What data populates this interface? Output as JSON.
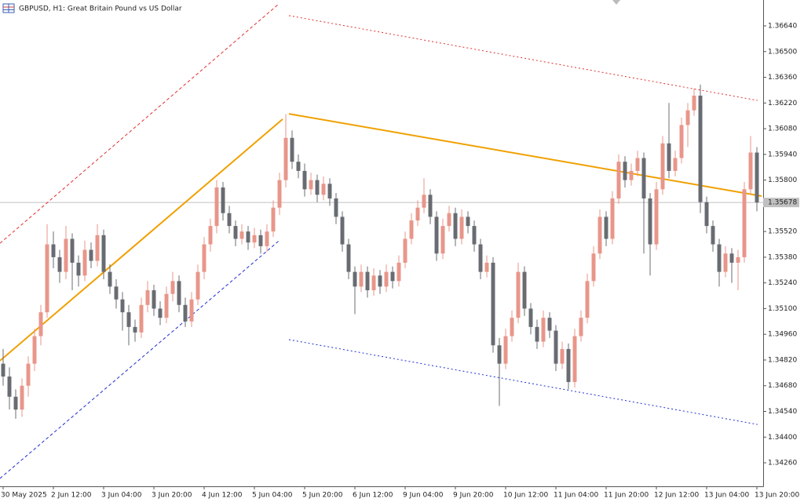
{
  "chart_data": {
    "type": "candlestick",
    "title": "GBPUSD, H1:  Great Britain Pound vs US Dollar",
    "up_color": "#e8968a",
    "down_color": "#686c72",
    "xlim": [
      -0.5,
      121.0
    ],
    "ylim": [
      1.34132,
      1.36781
    ],
    "xticks": [
      {
        "value": 0,
        "label": "30 May 2025"
      },
      {
        "value": 8,
        "label": "2 Jun 12:00"
      },
      {
        "value": 16,
        "label": "3 Jun 04:00"
      },
      {
        "value": 24,
        "label": "3 Jun 20:00"
      },
      {
        "value": 32,
        "label": "4 Jun 12:00"
      },
      {
        "value": 40,
        "label": "5 Jun 04:00"
      },
      {
        "value": 48,
        "label": "5 Jun 20:00"
      },
      {
        "value": 56,
        "label": "6 Jun 12:00"
      },
      {
        "value": 64,
        "label": "9 Jun 04:00"
      },
      {
        "value": 72,
        "label": "9 Jun 20:00"
      },
      {
        "value": 80,
        "label": "10 Jun 12:00"
      },
      {
        "value": 88,
        "label": "11 Jun 04:00"
      },
      {
        "value": 96,
        "label": "11 Jun 20:00"
      },
      {
        "value": 104,
        "label": "12 Jun 12:00"
      },
      {
        "value": 112,
        "label": "13 Jun 04:00"
      },
      {
        "value": 120,
        "label": "13 Jun 20:00"
      }
    ],
    "yticks": [
      {
        "value": 1.3664,
        "label": "1.36640"
      },
      {
        "value": 1.365,
        "label": "1.36500"
      },
      {
        "value": 1.3636,
        "label": "1.36360"
      },
      {
        "value": 1.3622,
        "label": "1.36220"
      },
      {
        "value": 1.3608,
        "label": "1.36080"
      },
      {
        "value": 1.3594,
        "label": "1.35940"
      },
      {
        "value": 1.358,
        "label": "1.35800"
      },
      {
        "value": 1.3552,
        "label": "1.35520"
      },
      {
        "value": 1.3538,
        "label": "1.35380"
      },
      {
        "value": 1.3524,
        "label": "1.35240"
      },
      {
        "value": 1.351,
        "label": "1.35100"
      },
      {
        "value": 1.3496,
        "label": "1.34960"
      },
      {
        "value": 1.3482,
        "label": "1.34820"
      },
      {
        "value": 1.3468,
        "label": "1.34680"
      },
      {
        "value": 1.3454,
        "label": "1.34540"
      },
      {
        "value": 1.344,
        "label": "1.34400"
      },
      {
        "value": 1.3426,
        "label": "1.34260"
      }
    ],
    "last_price": {
      "value": 1.35678,
      "label": "1.35678"
    },
    "ohlc": [
      [
        1.348,
        1.3488,
        1.3468,
        1.3473
      ],
      [
        1.3473,
        1.3478,
        1.3455,
        1.3462
      ],
      [
        1.3462,
        1.3466,
        1.345,
        1.3455
      ],
      [
        1.3455,
        1.3472,
        1.3451,
        1.3468
      ],
      [
        1.3468,
        1.3484,
        1.3462,
        1.348
      ],
      [
        1.348,
        1.3499,
        1.3476,
        1.3495
      ],
      [
        1.3495,
        1.3512,
        1.349,
        1.3508
      ],
      [
        1.3508,
        1.3556,
        1.3505,
        1.3545
      ],
      [
        1.3545,
        1.3552,
        1.3532,
        1.3538
      ],
      [
        1.3538,
        1.3542,
        1.3524,
        1.353
      ],
      [
        1.353,
        1.3555,
        1.3526,
        1.3548
      ],
      [
        1.3548,
        1.3551,
        1.352,
        1.3535
      ],
      [
        1.3535,
        1.3539,
        1.3522,
        1.3528
      ],
      [
        1.3528,
        1.3547,
        1.3525,
        1.3542
      ],
      [
        1.3542,
        1.3546,
        1.3532,
        1.3536
      ],
      [
        1.3536,
        1.3556,
        1.3533,
        1.355
      ],
      [
        1.355,
        1.3553,
        1.3526,
        1.353
      ],
      [
        1.353,
        1.3534,
        1.3518,
        1.3522
      ],
      [
        1.3522,
        1.3526,
        1.351,
        1.3515
      ],
      [
        1.3515,
        1.3519,
        1.3498,
        1.3508
      ],
      [
        1.3508,
        1.3512,
        1.349,
        1.35
      ],
      [
        1.35,
        1.3504,
        1.3492,
        1.3497
      ],
      [
        1.3497,
        1.3516,
        1.3494,
        1.3512
      ],
      [
        1.3512,
        1.3525,
        1.3508,
        1.352
      ],
      [
        1.352,
        1.3523,
        1.3506,
        1.351
      ],
      [
        1.351,
        1.3514,
        1.3501,
        1.3505
      ],
      [
        1.3505,
        1.3522,
        1.3502,
        1.3518
      ],
      [
        1.3518,
        1.353,
        1.3514,
        1.3525
      ],
      [
        1.3525,
        1.3528,
        1.3508,
        1.3512
      ],
      [
        1.3512,
        1.3516,
        1.35,
        1.3503
      ],
      [
        1.3503,
        1.3519,
        1.35,
        1.3515
      ],
      [
        1.3515,
        1.3534,
        1.3512,
        1.353
      ],
      [
        1.353,
        1.3549,
        1.3526,
        1.3545
      ],
      [
        1.3545,
        1.3559,
        1.3541,
        1.3555
      ],
      [
        1.3555,
        1.358,
        1.3551,
        1.3576
      ],
      [
        1.3576,
        1.3579,
        1.3558,
        1.3562
      ],
      [
        1.3562,
        1.3566,
        1.3551,
        1.3555
      ],
      [
        1.3555,
        1.3558,
        1.3544,
        1.3548
      ],
      [
        1.3548,
        1.3556,
        1.3545,
        1.3552
      ],
      [
        1.3552,
        1.3555,
        1.3542,
        1.3546
      ],
      [
        1.3546,
        1.3554,
        1.3543,
        1.355
      ],
      [
        1.355,
        1.3553,
        1.354,
        1.3544
      ],
      [
        1.3544,
        1.3556,
        1.3541,
        1.3552
      ],
      [
        1.3552,
        1.3569,
        1.3549,
        1.3565
      ],
      [
        1.3565,
        1.3584,
        1.3561,
        1.358
      ],
      [
        1.358,
        1.3616,
        1.3576,
        1.3603
      ],
      [
        1.3603,
        1.3607,
        1.3586,
        1.359
      ],
      [
        1.359,
        1.3594,
        1.3581,
        1.3585
      ],
      [
        1.3585,
        1.3589,
        1.3571,
        1.3575
      ],
      [
        1.3575,
        1.3584,
        1.3572,
        1.358
      ],
      [
        1.358,
        1.3583,
        1.3568,
        1.3572
      ],
      [
        1.3572,
        1.3582,
        1.3569,
        1.3578
      ],
      [
        1.3578,
        1.3581,
        1.3566,
        1.357
      ],
      [
        1.357,
        1.3573,
        1.3556,
        1.356
      ],
      [
        1.356,
        1.3563,
        1.3541,
        1.3545
      ],
      [
        1.3545,
        1.3548,
        1.3526,
        1.353
      ],
      [
        1.353,
        1.3533,
        1.3507,
        1.3522
      ],
      [
        1.3522,
        1.3534,
        1.3519,
        1.353
      ],
      [
        1.353,
        1.3533,
        1.3516,
        1.352
      ],
      [
        1.352,
        1.3532,
        1.3517,
        1.3528
      ],
      [
        1.3528,
        1.3531,
        1.3518,
        1.3522
      ],
      [
        1.3522,
        1.3534,
        1.3519,
        1.353
      ],
      [
        1.353,
        1.3533,
        1.3521,
        1.3525
      ],
      [
        1.3525,
        1.3539,
        1.3522,
        1.3535
      ],
      [
        1.3535,
        1.3552,
        1.3532,
        1.3548
      ],
      [
        1.3548,
        1.3562,
        1.3545,
        1.3558
      ],
      [
        1.3558,
        1.3569,
        1.3555,
        1.3565
      ],
      [
        1.3565,
        1.3581,
        1.3562,
        1.3572
      ],
      [
        1.3572,
        1.3575,
        1.3556,
        1.356
      ],
      [
        1.356,
        1.3563,
        1.3536,
        1.354
      ],
      [
        1.354,
        1.3559,
        1.3537,
        1.3555
      ],
      [
        1.3555,
        1.3566,
        1.3552,
        1.3562
      ],
      [
        1.3562,
        1.3565,
        1.3544,
        1.3548
      ],
      [
        1.3548,
        1.3564,
        1.3545,
        1.356
      ],
      [
        1.356,
        1.3563,
        1.3551,
        1.3555
      ],
      [
        1.3555,
        1.3558,
        1.3541,
        1.3545
      ],
      [
        1.3545,
        1.3548,
        1.3526,
        1.353
      ],
      [
        1.353,
        1.3539,
        1.3527,
        1.3535
      ],
      [
        1.3535,
        1.3538,
        1.3486,
        1.349
      ],
      [
        1.349,
        1.3494,
        1.3457,
        1.348
      ],
      [
        1.348,
        1.3499,
        1.3477,
        1.3495
      ],
      [
        1.3495,
        1.3509,
        1.3492,
        1.3505
      ],
      [
        1.3505,
        1.3535,
        1.3502,
        1.353
      ],
      [
        1.353,
        1.3533,
        1.3506,
        1.351
      ],
      [
        1.351,
        1.3513,
        1.3496,
        1.35
      ],
      [
        1.35,
        1.3504,
        1.3488,
        1.3492
      ],
      [
        1.3492,
        1.3509,
        1.3489,
        1.3505
      ],
      [
        1.3505,
        1.3508,
        1.3494,
        1.3498
      ],
      [
        1.3498,
        1.3501,
        1.3476,
        1.348
      ],
      [
        1.348,
        1.3492,
        1.3477,
        1.3488
      ],
      [
        1.3488,
        1.3491,
        1.3466,
        1.347
      ],
      [
        1.347,
        1.3499,
        1.3467,
        1.3495
      ],
      [
        1.3495,
        1.3509,
        1.3492,
        1.3505
      ],
      [
        1.3505,
        1.3529,
        1.3502,
        1.3525
      ],
      [
        1.3525,
        1.3544,
        1.3522,
        1.354
      ],
      [
        1.354,
        1.3564,
        1.3537,
        1.356
      ],
      [
        1.356,
        1.3563,
        1.3544,
        1.3548
      ],
      [
        1.3548,
        1.3574,
        1.3545,
        1.357
      ],
      [
        1.357,
        1.3594,
        1.3567,
        1.359
      ],
      [
        1.359,
        1.3593,
        1.3576,
        1.358
      ],
      [
        1.358,
        1.3589,
        1.3577,
        1.3585
      ],
      [
        1.3585,
        1.3596,
        1.3582,
        1.3592
      ],
      [
        1.3592,
        1.3595,
        1.354,
        1.357
      ],
      [
        1.357,
        1.3573,
        1.3528,
        1.3545
      ],
      [
        1.3545,
        1.3579,
        1.3542,
        1.3575
      ],
      [
        1.3575,
        1.3604,
        1.3572,
        1.36
      ],
      [
        1.36,
        1.3622,
        1.3581,
        1.3585
      ],
      [
        1.3585,
        1.3596,
        1.3582,
        1.3592
      ],
      [
        1.3592,
        1.3614,
        1.3589,
        1.361
      ],
      [
        1.361,
        1.3622,
        1.3598,
        1.3618
      ],
      [
        1.3618,
        1.363,
        1.3615,
        1.3626
      ],
      [
        1.3626,
        1.3632,
        1.3562,
        1.3568
      ],
      [
        1.3568,
        1.3571,
        1.3551,
        1.3555
      ],
      [
        1.3555,
        1.3558,
        1.3541,
        1.3545
      ],
      [
        1.3545,
        1.3548,
        1.3522,
        1.353
      ],
      [
        1.353,
        1.3544,
        1.3527,
        1.354
      ],
      [
        1.354,
        1.3543,
        1.3524,
        1.3535
      ],
      [
        1.3535,
        1.3542,
        1.352,
        1.3538
      ],
      [
        1.3538,
        1.3579,
        1.3535,
        1.3575
      ],
      [
        1.3575,
        1.3604,
        1.3572,
        1.3595
      ],
      [
        1.3595,
        1.3598,
        1.3563,
        1.35678
      ]
    ],
    "lines": [
      {
        "color": "#f0a000",
        "dash": "solid",
        "x": [
          -0.5,
          44.5
        ],
        "y": [
          1.34816,
          1.36132
        ]
      },
      {
        "color": "#e03030",
        "dash": "dashed",
        "x": [
          -0.5,
          43.9
        ],
        "y": [
          1.35456,
          1.3676
        ]
      },
      {
        "color": "#2030d0",
        "dash": "dashed",
        "x": [
          -0.5,
          43.9
        ],
        "y": [
          1.34175,
          1.35469
        ]
      },
      {
        "color": "#f0a000",
        "dash": "solid",
        "x": [
          45.5,
          120.75
        ],
        "y": [
          1.36161,
          1.35713
        ]
      },
      {
        "color": "#e03030",
        "dash": "dotted",
        "x": [
          45.5,
          120.1
        ],
        "y": [
          1.36696,
          1.36234
        ]
      },
      {
        "color": "#2030d0",
        "dash": "dotted",
        "x": [
          45.5,
          120.1
        ],
        "y": [
          1.34931,
          1.34469
        ]
      }
    ]
  }
}
